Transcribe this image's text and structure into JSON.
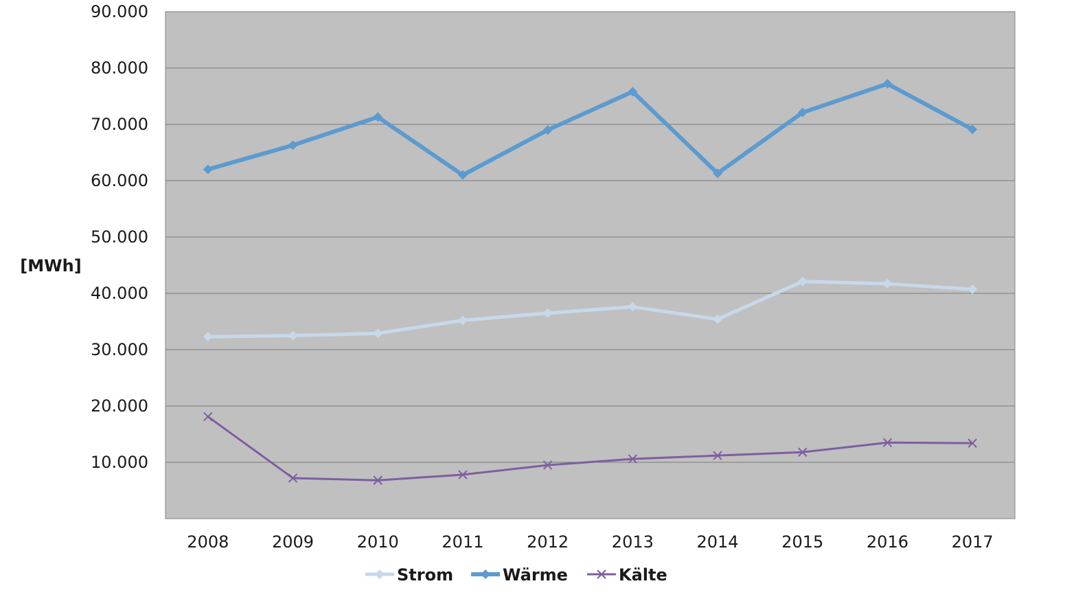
{
  "chart_data": {
    "type": "line",
    "title": "",
    "xlabel": "",
    "ylabel": "[MWh]",
    "categories": [
      "2008",
      "2009",
      "2010",
      "2011",
      "2012",
      "2013",
      "2014",
      "2015",
      "2016",
      "2017"
    ],
    "ylim": [
      0,
      90000
    ],
    "yticks": [
      10000,
      20000,
      30000,
      40000,
      50000,
      60000,
      70000,
      80000,
      90000
    ],
    "ytick_labels": [
      "10.000",
      "20.000",
      "30.000",
      "40.000",
      "50.000",
      "60.000",
      "70.000",
      "80.000",
      "90.000"
    ],
    "grid": true,
    "plot_background": "#c0c0c0",
    "legend_position": "bottom",
    "series": [
      {
        "name": "Strom",
        "color": "#c6d9ea",
        "marker": "diamond",
        "values": [
          32300,
          32500,
          32900,
          35200,
          36500,
          37600,
          35400,
          42100,
          41700,
          40700
        ]
      },
      {
        "name": "Wärme",
        "color": "#5b9bd0",
        "marker": "diamond",
        "values": [
          62000,
          66300,
          71300,
          61000,
          69000,
          75800,
          61300,
          72100,
          77200,
          69100
        ]
      },
      {
        "name": "Kälte",
        "color": "#7e5ea0",
        "marker": "x",
        "values": [
          18100,
          7200,
          6800,
          7800,
          9500,
          10600,
          11200,
          11800,
          13500,
          13400
        ]
      }
    ]
  }
}
